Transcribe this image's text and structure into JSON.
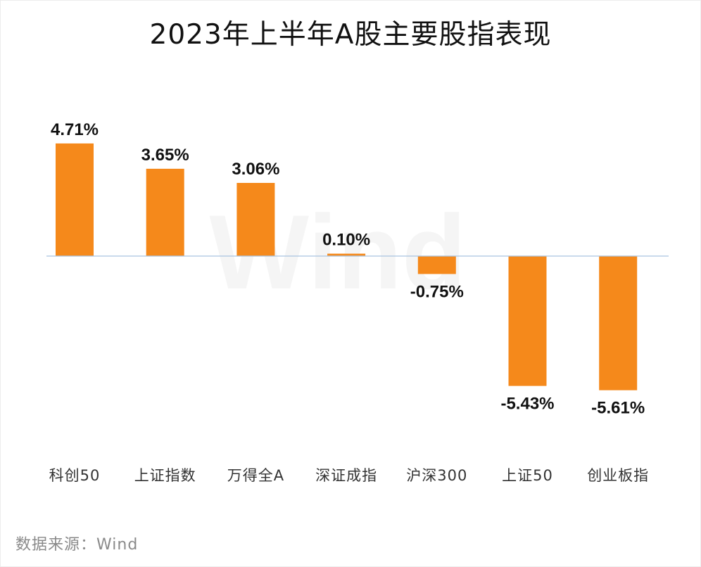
{
  "title": "2023年上半年A股主要股指表现",
  "source": "数据来源：Wind",
  "watermark": "Wind",
  "colors": {
    "bar": "#F5891B",
    "baseline": "#A9C4E0"
  },
  "chart_data": {
    "type": "bar",
    "title": "2023年上半年A股主要股指表现",
    "categories": [
      "科创50",
      "上证指数",
      "万得全A",
      "深证成指",
      "沪深300",
      "上证50",
      "创业板指"
    ],
    "values": [
      4.71,
      3.65,
      3.06,
      0.1,
      -0.75,
      -5.43,
      -5.61
    ],
    "value_labels": [
      "4.71%",
      "3.65%",
      "3.06%",
      "0.10%",
      "-0.75%",
      "-5.43%",
      "-5.61%"
    ],
    "unit": "%",
    "xlabel": "",
    "ylabel": "",
    "grid": false,
    "legend": "none"
  }
}
